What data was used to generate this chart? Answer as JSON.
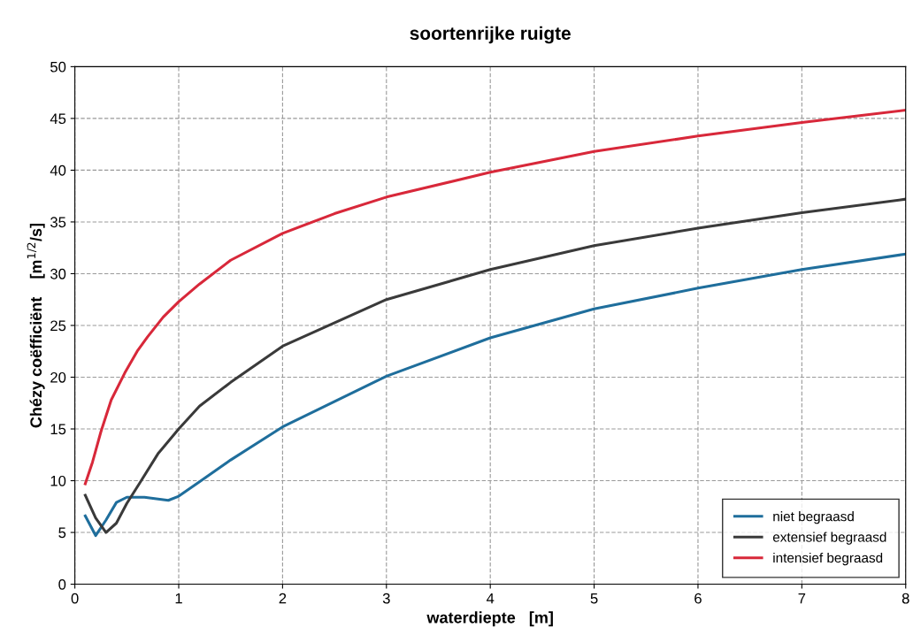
{
  "chart_data": {
    "type": "line",
    "title": "soortenrijke ruigte",
    "xlabel": "waterdiepte   [m]",
    "ylabel": "Chézy coëfficiënt    [m$^{1/2}$/s]",
    "xlim": [
      0,
      8
    ],
    "xticks": [
      0,
      1,
      2,
      3,
      4,
      5,
      6,
      7,
      8
    ],
    "ylim": [
      0,
      50
    ],
    "yticks": [
      0,
      5,
      10,
      15,
      20,
      25,
      30,
      35,
      40,
      45,
      50
    ],
    "grid": true,
    "legend": "bottom right",
    "marker": "none",
    "line_style": "solid",
    "series": [
      {
        "name": "niet begraasd",
        "color": "#1f6e9c",
        "x": [
          0.1,
          0.2,
          0.3,
          0.4,
          0.5,
          0.67,
          0.9,
          1.0,
          1.2,
          1.5,
          2,
          3,
          4,
          5,
          6,
          7,
          8
        ],
        "values": [
          6.6,
          4.7,
          6.2,
          7.9,
          8.4,
          8.4,
          8.1,
          8.5,
          9.9,
          12.0,
          15.2,
          20.1,
          23.8,
          26.6,
          28.6,
          30.4,
          31.9
        ]
      },
      {
        "name": "extensief begraasd",
        "color": "#3a3a3a",
        "x": [
          0.1,
          0.2,
          0.3,
          0.4,
          0.5,
          0.62,
          0.8,
          1.0,
          1.2,
          1.5,
          2,
          3,
          4,
          5,
          6,
          7,
          8
        ],
        "values": [
          8.6,
          6.4,
          5.0,
          5.9,
          7.8,
          9.7,
          12.6,
          15.0,
          17.2,
          19.5,
          23.0,
          27.5,
          30.4,
          32.7,
          34.4,
          35.9,
          37.2
        ]
      },
      {
        "name": "intensief begraasd",
        "color": "#d8283a",
        "x": [
          0.1,
          0.17,
          0.25,
          0.35,
          0.48,
          0.6,
          0.7,
          0.85,
          1.0,
          1.2,
          1.5,
          2,
          2.5,
          3,
          4,
          5,
          6,
          7,
          8
        ],
        "values": [
          9.7,
          11.8,
          14.7,
          17.8,
          20.4,
          22.5,
          23.9,
          25.8,
          27.3,
          29.0,
          31.3,
          33.9,
          35.8,
          37.4,
          39.8,
          41.8,
          43.3,
          44.6,
          45.8
        ]
      }
    ]
  }
}
